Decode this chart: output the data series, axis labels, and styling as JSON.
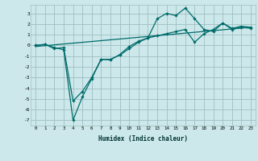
{
  "xlabel": "Humidex (Indice chaleur)",
  "bg_color": "#cce8ea",
  "grid_color": "#9fbfc2",
  "line_color": "#006b6b",
  "xlim": [
    -0.5,
    23.5
  ],
  "ylim": [
    -7.5,
    3.8
  ],
  "line1_x": [
    0,
    1,
    2,
    3,
    4,
    5,
    6,
    7,
    8,
    9,
    10,
    11,
    12,
    13,
    14,
    15,
    16,
    17,
    18,
    19,
    20,
    21,
    22,
    23
  ],
  "line1_y": [
    0.0,
    0.1,
    -0.3,
    -0.2,
    -5.2,
    -4.3,
    -3.0,
    -1.3,
    -1.3,
    -0.9,
    -0.3,
    0.3,
    0.7,
    2.5,
    3.0,
    2.8,
    3.5,
    2.5,
    1.5,
    1.3,
    2.1,
    1.5,
    1.7,
    1.6
  ],
  "line2_x": [
    0,
    1,
    2,
    3,
    4,
    5,
    6,
    7,
    8,
    9,
    10,
    11,
    12,
    13,
    14,
    15,
    16,
    17,
    18,
    19,
    20,
    21,
    22,
    23
  ],
  "line2_y": [
    0.0,
    0.1,
    -0.2,
    -0.4,
    -7.0,
    -4.8,
    -3.1,
    -1.3,
    -1.35,
    -0.85,
    -0.1,
    0.4,
    0.7,
    0.9,
    1.1,
    1.3,
    1.5,
    0.3,
    1.1,
    1.5,
    2.1,
    1.6,
    1.8,
    1.7
  ],
  "line3_x": [
    0,
    23
  ],
  "line3_y": [
    -0.1,
    1.7
  ],
  "xticks": [
    0,
    1,
    2,
    3,
    4,
    5,
    6,
    7,
    8,
    9,
    10,
    11,
    12,
    13,
    14,
    15,
    16,
    17,
    18,
    19,
    20,
    21,
    22,
    23
  ],
  "yticks": [
    -7,
    -6,
    -5,
    -4,
    -3,
    -2,
    -1,
    0,
    1,
    2,
    3
  ]
}
